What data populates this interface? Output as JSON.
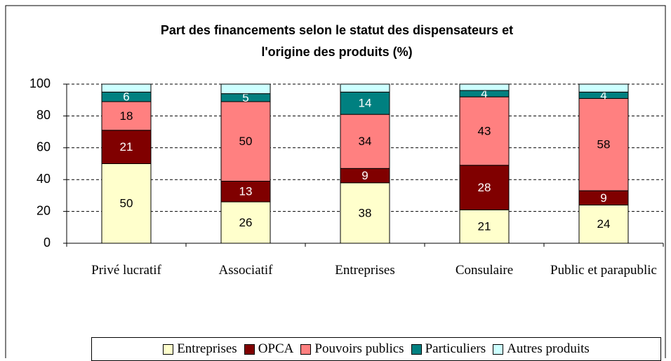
{
  "chart_data": {
    "type": "stacked_bar",
    "title": "Part des financements selon le statut des dispensateurs et l'origine des produits (%)",
    "categories": [
      "Privé lucratif",
      "Associatif",
      "Entreprises",
      "Consulaire",
      "Public et parapublic"
    ],
    "series": [
      {
        "name": "Entreprises",
        "color": "#ffffcc",
        "label_color": "#000000",
        "show_labels": true,
        "values": [
          50,
          26,
          38,
          21,
          24
        ]
      },
      {
        "name": "OPCA",
        "color": "#800000",
        "label_color": "#ffffff",
        "show_labels": true,
        "values": [
          21,
          13,
          9,
          28,
          9
        ]
      },
      {
        "name": "Pouvoirs publics",
        "color": "#ff8080",
        "label_color": "#000000",
        "show_labels": true,
        "values": [
          18,
          50,
          34,
          43,
          58
        ]
      },
      {
        "name": "Particuliers",
        "color": "#008080",
        "label_color": "#ffffff",
        "show_labels": true,
        "values": [
          6,
          5,
          14,
          4,
          4
        ]
      },
      {
        "name": "Autres produits",
        "color": "#ccffff",
        "label_color": "#000000",
        "show_labels": false,
        "values": [
          5,
          6,
          5,
          4,
          5
        ]
      }
    ],
    "ylim": [
      0,
      100
    ],
    "yticks": [
      0,
      20,
      40,
      60,
      80,
      100
    ],
    "grid": true,
    "legend": "bottom"
  }
}
